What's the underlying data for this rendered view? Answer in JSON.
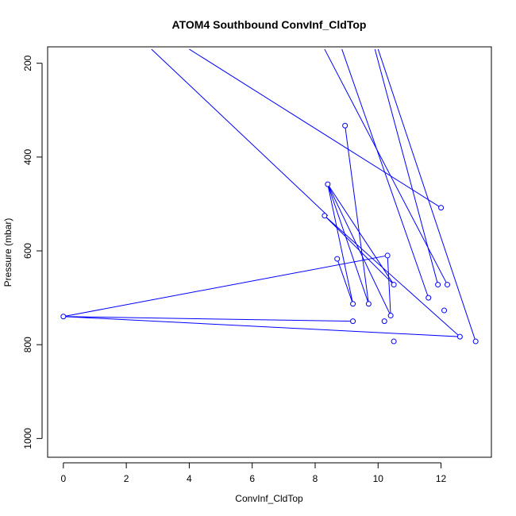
{
  "chart_data": {
    "type": "line",
    "title": "ATOM4 Southbound ConvInf_CldTop",
    "xlabel": "ConvInf_CldTop",
    "ylabel": "Pressure (mbar)",
    "xlim": [
      -0.5,
      13.6
    ],
    "ylim": [
      1040,
      165
    ],
    "y_reversed": true,
    "grid": false,
    "legend": "none",
    "series_color": "#0000ff",
    "x_ticks": [
      0,
      2,
      4,
      6,
      8,
      10,
      12
    ],
    "y_ticks": [
      200,
      400,
      600,
      800,
      1000
    ],
    "segments_no_marker": [
      {
        "x": [
          2.8,
          8.4
        ],
        "y": [
          170,
          525
        ]
      },
      {
        "x": [
          4.0,
          12.0
        ],
        "y": [
          170,
          508
        ]
      },
      {
        "x": [
          8.3,
          12.2
        ],
        "y": [
          170,
          672
        ]
      },
      {
        "x": [
          8.85,
          11.6
        ],
        "y": [
          170,
          700
        ]
      },
      {
        "x": [
          9.9,
          11.9
        ],
        "y": [
          170,
          672
        ]
      },
      {
        "x": [
          10.0,
          13.1
        ],
        "y": [
          170,
          793
        ]
      }
    ],
    "points": {
      "x": [
        8.4,
        9.9,
        8.4,
        10.3,
        12.1,
        8.95,
        10.0,
        8.7,
        9.2,
        10.2,
        10.5,
        12.6,
        0.0,
        10.3,
        10.5,
        9.7,
        9.2,
        0.0
      ],
      "y": [
        525,
        615,
        458,
        610,
        727,
        333,
        710,
        617,
        713,
        750,
        793,
        783,
        740,
        610,
        672,
        713,
        750,
        740
      ]
    },
    "marker_points": {
      "x": [
        8.95,
        8.4,
        8.3,
        8.7,
        9.2,
        9.2,
        9.7,
        10.2,
        10.3,
        10.4,
        10.5,
        10.5,
        11.6,
        11.9,
        12.0,
        12.1,
        12.2,
        12.6,
        13.1,
        0.0
      ],
      "y": [
        333,
        458,
        525,
        617,
        713,
        750,
        713,
        750,
        610,
        738,
        672,
        793,
        700,
        672,
        508,
        727,
        672,
        783,
        793,
        740
      ]
    },
    "polyline": {
      "x": [
        8.95,
        9.7,
        8.4,
        10.4,
        10.3,
        0.0,
        9.2,
        0.0,
        12.6,
        8.3,
        10.5,
        8.4,
        9.2,
        8.7
      ],
      "y": [
        333,
        713,
        458,
        738,
        610,
        740,
        750,
        740,
        783,
        525,
        672,
        458,
        713,
        617
      ]
    }
  }
}
